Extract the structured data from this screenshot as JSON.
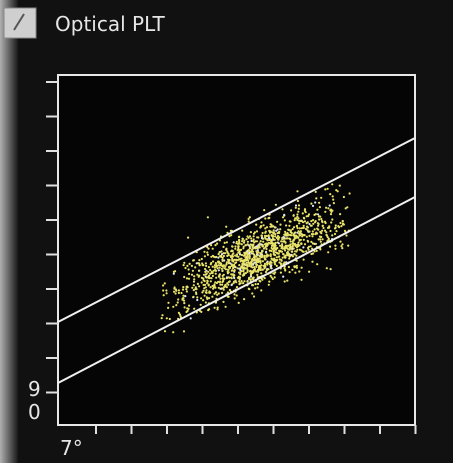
{
  "header": {
    "title": "Optical PLT"
  },
  "plot": {
    "y_axis_label": [
      "9",
      "0"
    ],
    "x_axis_label": "7°"
  }
}
